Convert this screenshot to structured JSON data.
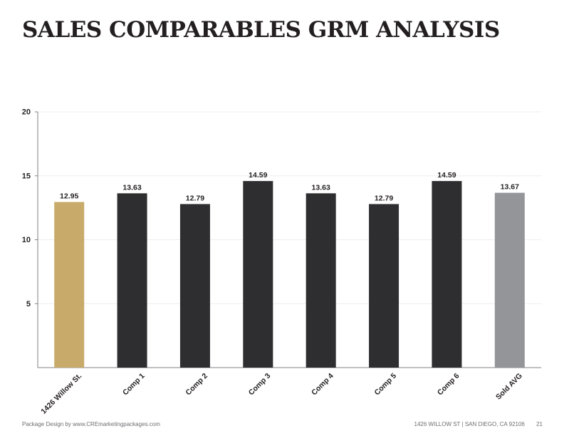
{
  "title": "SALES COMPARABLES GRM ANALYSIS",
  "footer": {
    "credit": "Package Design by www.CREmarketingpackages.com",
    "address": "1426 WILLOW ST  |  SAN DIEGO, CA 92106",
    "page": "21"
  },
  "chart_data": {
    "type": "bar",
    "categories": [
      "1426 Willow St.",
      "Comp 1",
      "Comp 2",
      "Comp 3",
      "Comp 4",
      "Comp 5",
      "Comp 6",
      "Sold AVG"
    ],
    "values": [
      12.95,
      13.63,
      12.79,
      14.59,
      13.63,
      12.79,
      14.59,
      13.67
    ],
    "data_labels": [
      "12.95",
      "13.63",
      "12.79",
      "14.59",
      "13.63",
      "12.79",
      "14.59",
      "13.67"
    ],
    "bar_colors": [
      "#c8aa6b",
      "#2e2e30",
      "#2e2e30",
      "#2e2e30",
      "#2e2e30",
      "#2e2e30",
      "#2e2e30",
      "#939598"
    ],
    "ylim": [
      0,
      20
    ],
    "yticks": [
      5,
      10,
      15,
      20
    ],
    "grid": true,
    "legend": "none",
    "xlabel": "",
    "ylabel": ""
  }
}
